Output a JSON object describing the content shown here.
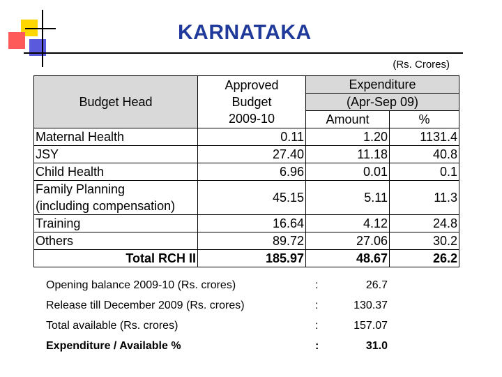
{
  "title": "KARNATAKA",
  "units": "(Rs. Crores)",
  "table": {
    "header": {
      "budget_head": "Budget Head",
      "approved_budget": [
        "Approved",
        "Budget",
        "2009-10"
      ],
      "expenditure": [
        "Expenditure",
        "(Apr-Sep 09)"
      ],
      "amount": "Amount",
      "percent": "%"
    },
    "rows": [
      {
        "head": "Maternal Health",
        "approved": "0.11",
        "amount": "1.20",
        "percent": "1131.4"
      },
      {
        "head": "JSY",
        "approved": "27.40",
        "amount": "11.18",
        "percent": "40.8"
      },
      {
        "head": "Child Health",
        "approved": "6.96",
        "amount": "0.01",
        "percent": "0.1"
      },
      {
        "head": "Family Planning",
        "head2": "(including compensation)",
        "approved": "45.15",
        "amount": "5.11",
        "percent": "11.3"
      },
      {
        "head": "Training",
        "approved": "16.64",
        "amount": "4.12",
        "percent": "24.8"
      },
      {
        "head": "Others",
        "approved": "89.72",
        "amount": "27.06",
        "percent": "30.2"
      }
    ],
    "total": {
      "head": "Total RCH II",
      "approved": "185.97",
      "amount": "48.67",
      "percent": "26.2"
    }
  },
  "summary": [
    {
      "label": "Opening balance 2009-10 (Rs. crores)",
      "colon": ":",
      "value": "26.7"
    },
    {
      "label": "Release till December 2009 (Rs. crores)",
      "colon": ":",
      "value": "130.37"
    },
    {
      "label": "Total available (Rs. crores)",
      "colon": ":",
      "value": "157.07"
    },
    {
      "label": "Expenditure / Available %",
      "colon": ":",
      "value": "31.0"
    }
  ]
}
